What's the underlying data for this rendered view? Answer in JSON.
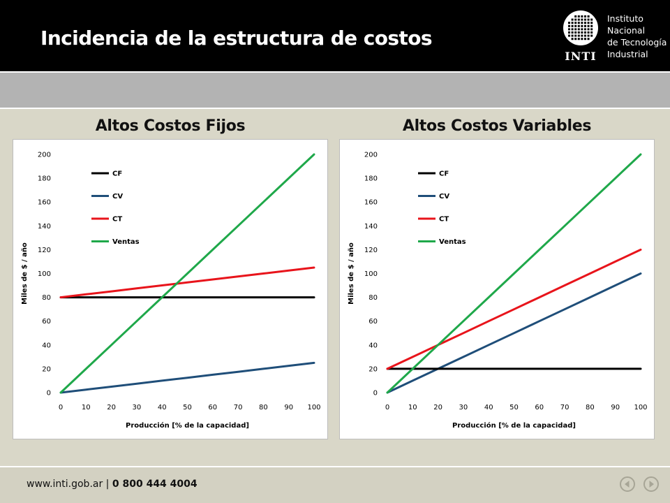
{
  "slide": {
    "title": "Incidencia de la estructura de costos"
  },
  "logo": {
    "acronym": "INTI",
    "lines": [
      "Instituto",
      "Nacional",
      "de Tecnología",
      "Industrial"
    ]
  },
  "footer": {
    "url": "www.inti.gob.ar",
    "separator": " | ",
    "phone": "0 800 444 4004",
    "nav": {
      "prev_icon": "arrow-left-circle-icon",
      "next_icon": "arrow-right-circle-icon"
    }
  },
  "colors": {
    "CF": "#000000",
    "CV": "#1f4e79",
    "CT": "#e8141b",
    "Ventas": "#1fa84a"
  },
  "chart_data": [
    {
      "type": "line",
      "title": "Altos Costos Fijos",
      "xlabel": "Producción [% de la capacidad]",
      "ylabel": "Miles de $ / año",
      "x": [
        0,
        10,
        20,
        30,
        40,
        50,
        60,
        70,
        80,
        90,
        100
      ],
      "xlim": [
        0,
        100
      ],
      "ylim": [
        0,
        200
      ],
      "yticks": [
        0,
        20,
        40,
        60,
        80,
        100,
        120,
        140,
        160,
        180,
        200
      ],
      "legend_position": "top-left",
      "grid": false,
      "series": [
        {
          "name": "CF",
          "values": [
            80,
            80,
            80,
            80,
            80,
            80,
            80,
            80,
            80,
            80,
            80
          ]
        },
        {
          "name": "CV",
          "values": [
            0,
            2.5,
            5,
            7.5,
            10,
            12.5,
            15,
            17.5,
            20,
            22.5,
            25
          ]
        },
        {
          "name": "CT",
          "values": [
            80,
            82.5,
            85,
            87.5,
            90,
            92.5,
            95,
            97.5,
            100,
            102.5,
            105
          ]
        },
        {
          "name": "Ventas",
          "values": [
            0,
            20,
            40,
            60,
            80,
            100,
            120,
            140,
            160,
            180,
            200
          ]
        }
      ]
    },
    {
      "type": "line",
      "title": "Altos Costos Variables",
      "xlabel": "Producción [% de la capacidad]",
      "ylabel": "Miles de $ / año",
      "x": [
        0,
        10,
        20,
        30,
        40,
        50,
        60,
        70,
        80,
        90,
        100
      ],
      "xlim": [
        0,
        100
      ],
      "ylim": [
        0,
        200
      ],
      "yticks": [
        0,
        20,
        40,
        60,
        80,
        100,
        120,
        140,
        160,
        180,
        200
      ],
      "legend_position": "top-left",
      "grid": false,
      "series": [
        {
          "name": "CF",
          "values": [
            20,
            20,
            20,
            20,
            20,
            20,
            20,
            20,
            20,
            20,
            20
          ]
        },
        {
          "name": "CV",
          "values": [
            0,
            10,
            20,
            30,
            40,
            50,
            60,
            70,
            80,
            90,
            100
          ]
        },
        {
          "name": "CT",
          "values": [
            20,
            30,
            40,
            50,
            60,
            70,
            80,
            90,
            100,
            110,
            120
          ]
        },
        {
          "name": "Ventas",
          "values": [
            0,
            20,
            40,
            60,
            80,
            100,
            120,
            140,
            160,
            180,
            200
          ]
        }
      ]
    }
  ]
}
